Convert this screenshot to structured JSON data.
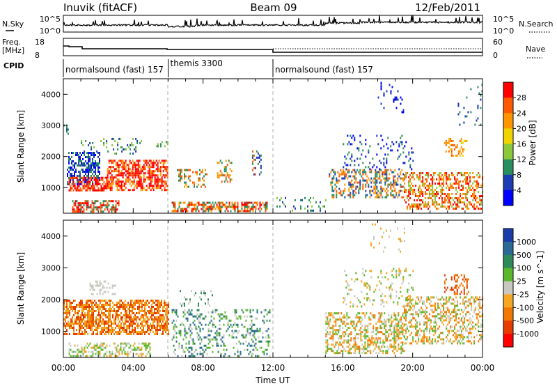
{
  "header": {
    "station": "Inuvik (fitACF)",
    "beam": "Beam 09",
    "date": "12/Feb/2011"
  },
  "noise_panel": {
    "left_label": "N.Sky",
    "right_label": "N.Search",
    "left_ticks": [
      "10^5",
      "10^0"
    ],
    "right_ticks": [
      "10^5",
      "10^0"
    ]
  },
  "freq_panel": {
    "left_label": "Freq.",
    "left_unit": "[MHz]",
    "right_label": "Nave",
    "left_ticks": [
      "18",
      "8"
    ],
    "right_ticks": [
      "60",
      "0"
    ]
  },
  "cpid": {
    "label": "CPID",
    "segments": [
      {
        "text": "normalsound (fast) 157",
        "start_hour": 0,
        "end_hour": 6
      },
      {
        "text": "themis 3300",
        "start_hour": 6,
        "end_hour": 12
      },
      {
        "text": "normalsound (fast) 157",
        "start_hour": 12,
        "end_hour": 24
      }
    ]
  },
  "x_axis": {
    "label": "Time UT",
    "ticks": [
      "00:00",
      "04:00",
      "08:00",
      "12:00",
      "16:00",
      "20:00",
      "00:00"
    ],
    "tick_hours": [
      0,
      4,
      8,
      12,
      16,
      20,
      24
    ]
  },
  "chart_data": [
    {
      "type": "heatmap",
      "name": "power",
      "ylabel": "Slant Range [km]",
      "yticks": [
        1000,
        2000,
        3000,
        4000
      ],
      "ylim": [
        180,
        4500
      ],
      "xlim": [
        0,
        24
      ],
      "colorbar": {
        "label": "Power [dB]",
        "ticks": [
          "28",
          "24",
          "20",
          "16",
          "12",
          "8",
          "4"
        ],
        "colors": [
          "#ff0000",
          "#ff5a00",
          "#ff9600",
          "#f0d400",
          "#8cc83c",
          "#2a8f5e",
          "#1c3cb4",
          "#0000ff"
        ]
      },
      "regions": [
        {
          "t": [
            0.2,
            2.1
          ],
          "r": [
            1100,
            2150
          ],
          "c": [
            5,
            6,
            7
          ],
          "d": 0.55
        },
        {
          "t": [
            0.3,
            2.5
          ],
          "r": [
            900,
            1350
          ],
          "c": [
            0,
            1
          ],
          "d": 0.65
        },
        {
          "t": [
            2.5,
            6.0
          ],
          "r": [
            900,
            1900
          ],
          "c": [
            0,
            0,
            1,
            2
          ],
          "d": 0.6
        },
        {
          "t": [
            0.5,
            3.2
          ],
          "r": [
            250,
            600
          ],
          "c": [
            0,
            1,
            5
          ],
          "d": 0.55
        },
        {
          "t": [
            6.2,
            11.7
          ],
          "r": [
            220,
            550
          ],
          "c": [
            0,
            1,
            2,
            5
          ],
          "d": 0.6
        },
        {
          "t": [
            1.0,
            4.5
          ],
          "r": [
            2100,
            2600
          ],
          "c": [
            4,
            5,
            6
          ],
          "d": 0.18
        },
        {
          "t": [
            0.0,
            0.3
          ],
          "r": [
            2700,
            3100
          ],
          "c": [
            5,
            6
          ],
          "d": 0.4
        },
        {
          "t": [
            5.3,
            6.0
          ],
          "r": [
            2300,
            2500
          ],
          "c": [
            4,
            5
          ],
          "d": 0.3
        },
        {
          "t": [
            6.5,
            8.2
          ],
          "r": [
            1000,
            1600
          ],
          "c": [
            1,
            2,
            5
          ],
          "d": 0.28
        },
        {
          "t": [
            8.8,
            9.6
          ],
          "r": [
            1200,
            1900
          ],
          "c": [
            1,
            2,
            5
          ],
          "d": 0.3
        },
        {
          "t": [
            10.8,
            11.3
          ],
          "r": [
            1400,
            2200
          ],
          "c": [
            1,
            5,
            6
          ],
          "d": 0.3
        },
        {
          "t": [
            12.2,
            15.0
          ],
          "r": [
            250,
            700
          ],
          "c": [
            5,
            6,
            4
          ],
          "d": 0.1
        },
        {
          "t": [
            15.2,
            19.5
          ],
          "r": [
            700,
            1600
          ],
          "c": [
            1,
            2,
            5,
            6
          ],
          "d": 0.4
        },
        {
          "t": [
            19.5,
            24.0
          ],
          "r": [
            300,
            1500
          ],
          "c": [
            0,
            1,
            2,
            4
          ],
          "d": 0.45
        },
        {
          "t": [
            21.8,
            23.2
          ],
          "r": [
            2000,
            2600
          ],
          "c": [
            1,
            2,
            3
          ],
          "d": 0.3
        },
        {
          "t": [
            16.0,
            20.0
          ],
          "r": [
            1600,
            2700
          ],
          "c": [
            5,
            6,
            7
          ],
          "d": 0.12
        },
        {
          "t": [
            18.0,
            19.5
          ],
          "r": [
            3400,
            4400
          ],
          "c": [
            6,
            7
          ],
          "d": 0.08
        },
        {
          "t": [
            22.5,
            24.0
          ],
          "r": [
            3000,
            4400
          ],
          "c": [
            6,
            5
          ],
          "d": 0.05
        }
      ]
    },
    {
      "type": "heatmap",
      "name": "velocity",
      "ylabel": "Slant Range [km]",
      "yticks": [
        1000,
        2000,
        3000,
        4000
      ],
      "ylim": [
        180,
        4500
      ],
      "xlim": [
        0,
        24
      ],
      "colorbar": {
        "label": "Velocity [m s^-1]",
        "ticks": [
          "1000",
          "500",
          "100",
          "25",
          "-25",
          "-100",
          "-500",
          "-1000"
        ],
        "colors": [
          "#1a3caa",
          "#2a6a94",
          "#2f8a5a",
          "#5ab82c",
          "#c8c8c0",
          "#f5a623",
          "#f07800",
          "#e63c00",
          "#ff0000"
        ]
      },
      "regions": [
        {
          "t": [
            0.0,
            6.0
          ],
          "r": [
            900,
            2000
          ],
          "c": [
            6,
            5,
            7
          ],
          "d": 0.65
        },
        {
          "t": [
            0.3,
            5.0
          ],
          "r": [
            200,
            650
          ],
          "c": [
            3,
            4,
            5
          ],
          "d": 0.4
        },
        {
          "t": [
            1.5,
            3.0
          ],
          "r": [
            2200,
            2600
          ],
          "c": [
            4
          ],
          "d": 0.3
        },
        {
          "t": [
            6.2,
            11.8
          ],
          "r": [
            250,
            1700
          ],
          "c": [
            2,
            1,
            4,
            3
          ],
          "d": 0.25
        },
        {
          "t": [
            6.5,
            8.5
          ],
          "r": [
            1800,
            2300
          ],
          "c": [
            2,
            4
          ],
          "d": 0.12
        },
        {
          "t": [
            15.0,
            19.5
          ],
          "r": [
            300,
            1600
          ],
          "c": [
            6,
            5,
            3,
            4
          ],
          "d": 0.45
        },
        {
          "t": [
            19.5,
            24.0
          ],
          "r": [
            600,
            2100
          ],
          "c": [
            6,
            5,
            4,
            3
          ],
          "d": 0.4
        },
        {
          "t": [
            21.8,
            23.2
          ],
          "r": [
            2200,
            2800
          ],
          "c": [
            6,
            7
          ],
          "d": 0.3
        },
        {
          "t": [
            16.0,
            20.0
          ],
          "r": [
            1800,
            3000
          ],
          "c": [
            4,
            3,
            5
          ],
          "d": 0.14
        },
        {
          "t": [
            17.5,
            19.5
          ],
          "r": [
            3500,
            4400
          ],
          "c": [
            5,
            4
          ],
          "d": 0.06
        }
      ]
    }
  ]
}
